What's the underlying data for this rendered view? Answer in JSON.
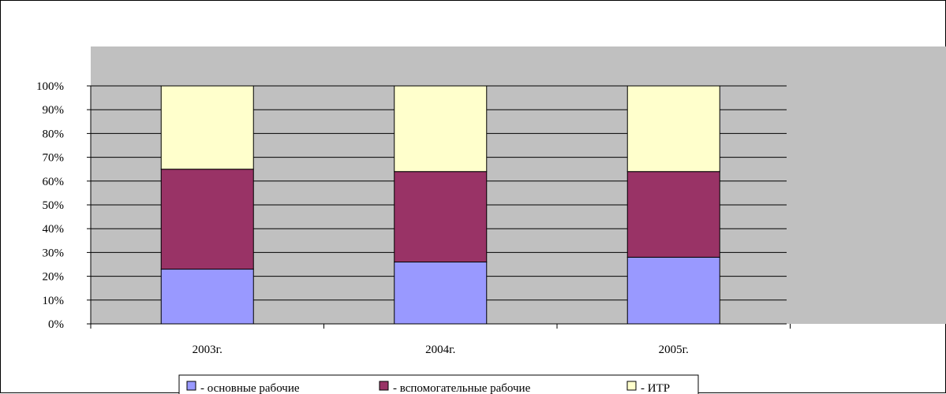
{
  "chart_data": {
    "type": "bar",
    "stacked": "percent",
    "categories": [
      "2003г.",
      "2004г.",
      "2005г."
    ],
    "series": [
      {
        "name": "- основные рабочие",
        "values": [
          23,
          26,
          28
        ],
        "color": "#9999ff"
      },
      {
        "name": "- вспомогательные рабочие",
        "values": [
          42,
          38,
          36
        ],
        "color": "#993366"
      },
      {
        "name": "- ИТР",
        "values": [
          35,
          36,
          36
        ],
        "color": "#ffffcc"
      }
    ],
    "ylim": [
      0,
      100
    ],
    "yticks": [
      "0%",
      "10%",
      "20%",
      "30%",
      "40%",
      "50%",
      "60%",
      "70%",
      "80%",
      "90%",
      "100%"
    ],
    "grid": true,
    "plot_background": "#c0c0c0",
    "legend_position": "bottom",
    "title": "",
    "xlabel": "",
    "ylabel": ""
  }
}
